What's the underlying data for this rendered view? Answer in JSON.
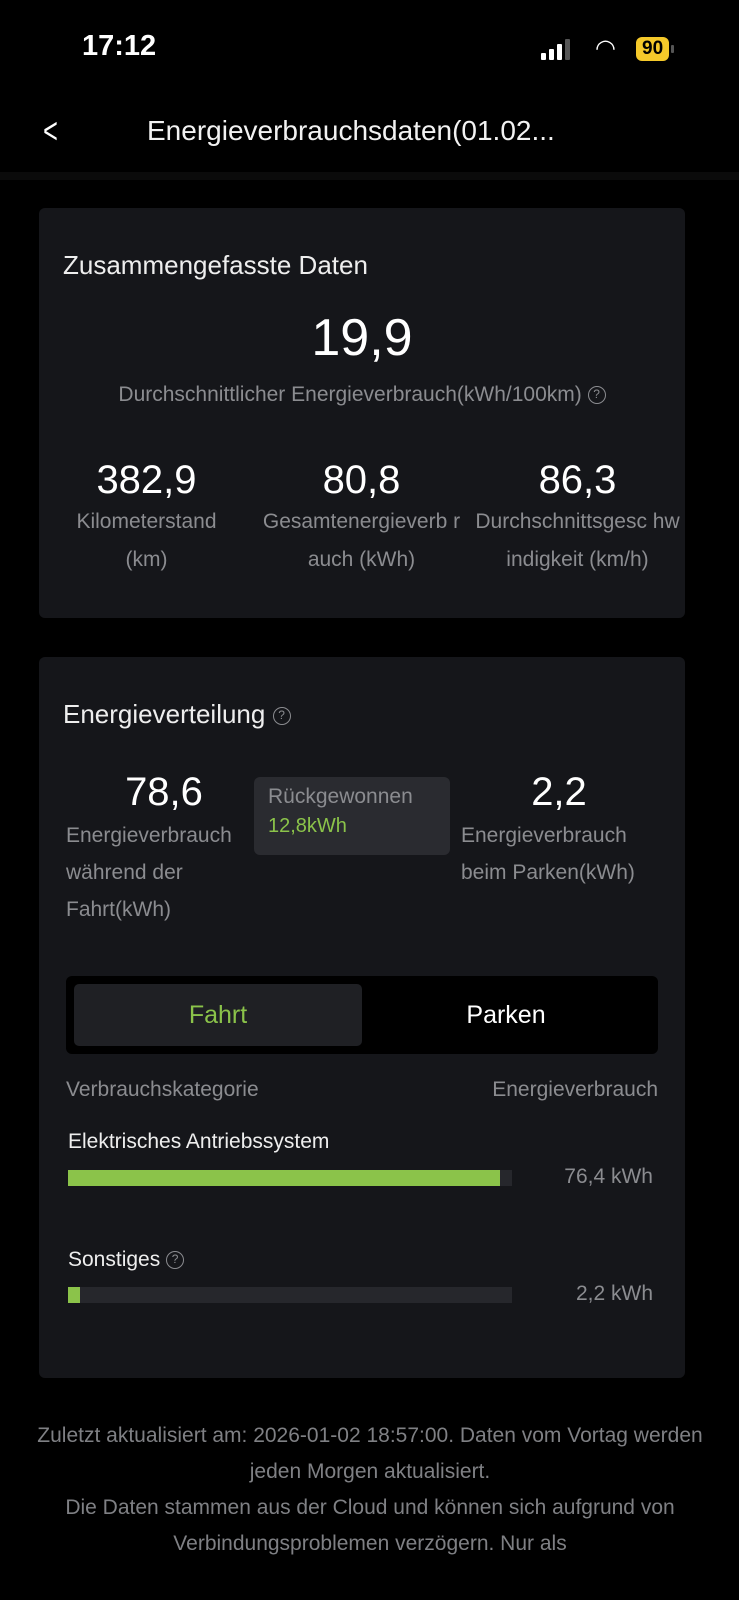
{
  "status": {
    "time": "17:12",
    "battery": "90"
  },
  "header": {
    "title": "Energieverbrauchsdaten(01.02..."
  },
  "summary": {
    "title": "Zusammengefasste Daten",
    "avg_value": "19,9",
    "avg_label": "Durchschnittlicher Energieverbrauch(kWh/100km)",
    "stats": [
      {
        "value": "382,9",
        "label": "Kilometerstand (km)"
      },
      {
        "value": "80,8",
        "label": "Gesamtenergieverb rauch (kWh)"
      },
      {
        "value": "86,3",
        "label": "Durchschnittsgesc hwindigkeit (km/h)"
      }
    ]
  },
  "distribution": {
    "title": "Energieverteilung",
    "driving": {
      "value": "78,6",
      "label": "Energieverbrauch während der Fahrt(kWh)"
    },
    "parking": {
      "value": "2,2",
      "label": "Energieverbrauch beim Parken(kWh)"
    },
    "tooltip": {
      "label": "Rückgewonnen",
      "value": "12,8kWh"
    },
    "tabs": [
      "Fahrt",
      "Parken"
    ],
    "active_tab": "Fahrt",
    "col_category": "Verbrauchskategorie",
    "col_energy": "Energieverbrauch",
    "items": [
      {
        "name": "Elektrisches Antriebssystem",
        "value": "76,4 kWh",
        "fraction": 0.972
      },
      {
        "name": "Sonstiges",
        "value": "2,2 kWh",
        "fraction": 0.028
      }
    ],
    "accent": "#8bc34a"
  },
  "footer": {
    "line1": "Zuletzt aktualisiert am: 2026-01-02 18:57:00. Daten vom Vortag werden jeden Morgen aktualisiert.",
    "line2": "Die Daten stammen aus der Cloud und können sich aufgrund von Verbindungsproblemen verzögern. Nur als"
  }
}
